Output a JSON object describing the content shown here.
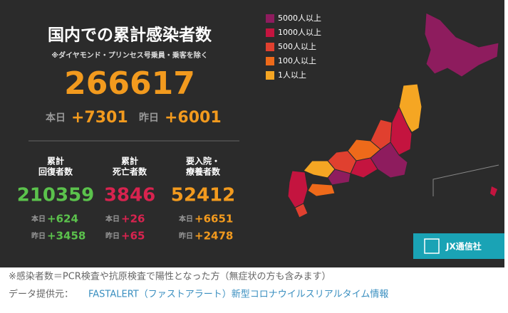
{
  "header": {
    "title": "国内での累計感染者数",
    "note": "※ダイヤモンド・プリンセス号乗員・乗客を除く"
  },
  "total": {
    "value": "266617",
    "today_label": "本日",
    "today": "+7301",
    "yesterday_label": "昨日",
    "yesterday": "+6001"
  },
  "stats": [
    {
      "label": [
        "累計",
        "回復者数"
      ],
      "value": "210359",
      "today_label": "本日",
      "today": "+624",
      "yesterday_label": "昨日",
      "yesterday": "+3458",
      "color": "#5bc24c"
    },
    {
      "label": [
        "累計",
        "死亡者数"
      ],
      "value": "3846",
      "today_label": "本日",
      "today": "+26",
      "yesterday_label": "昨日",
      "yesterday": "+65",
      "color": "#d8234f"
    },
    {
      "label": [
        "要入院・",
        "療養者数"
      ],
      "value": "52412",
      "today_label": "本日",
      "today": "+6651",
      "yesterday_label": "昨日",
      "yesterday": "+2478",
      "color": "#f29a1e"
    }
  ],
  "legend": [
    {
      "label": "5000人以上",
      "color": "#8e1c5e"
    },
    {
      "label": "1000人以上",
      "color": "#c4143f"
    },
    {
      "label": "500人以上",
      "color": "#e0402f"
    },
    {
      "label": "100人以上",
      "color": "#ee6a1a"
    },
    {
      "label": "1人以上",
      "color": "#f5a623"
    }
  ],
  "logo": "JX通信社",
  "footer": {
    "note": "※感染者数＝PCR検査や抗原検査で陽性となった方（無症状の方も含みます）",
    "source_label": "データ提供元：",
    "source_link": "FASTALERT（ファストアラート）新型コロナウイルスリアルタイム情報"
  }
}
